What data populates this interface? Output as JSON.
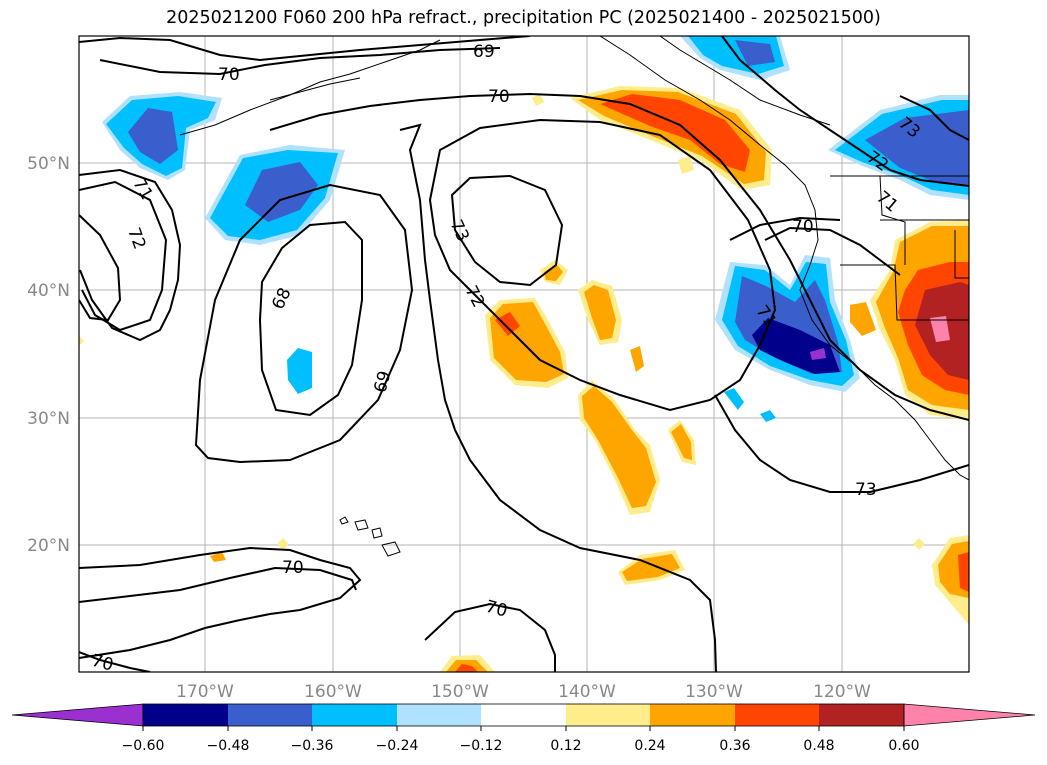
{
  "title": "2025021200 F060 200 hPa refract., precipitation PC (2025021400 - 2025021500)",
  "map": {
    "lat_labels": [
      "50°N",
      "40°N",
      "30°N",
      "20°N"
    ],
    "lon_labels": [
      "170°W",
      "160°W",
      "150°W",
      "140°W",
      "130°W",
      "120°W"
    ],
    "contour_labels": [
      "70",
      "69",
      "70",
      "71",
      "72",
      "73",
      "72",
      "68",
      "69",
      "73",
      "72",
      "71",
      "72",
      "71",
      "70",
      "70",
      "70",
      "70",
      "73"
    ]
  },
  "colorbar": {
    "ticks": [
      "−0.60",
      "−0.48",
      "−0.36",
      "−0.24",
      "−0.12",
      "0.12",
      "0.24",
      "0.36",
      "0.48",
      "0.60"
    ],
    "colors": {
      "under": "#9b30d0",
      "c1": "#00008b",
      "c2": "#3a5fcd",
      "c3": "#00bfff",
      "c4": "#b0e2ff",
      "c5": "#ffffff",
      "c6": "#ffec8b",
      "c7": "#ffa500",
      "c8": "#ff4500",
      "c9": "#b22222",
      "over": "#ff82ab"
    }
  }
}
